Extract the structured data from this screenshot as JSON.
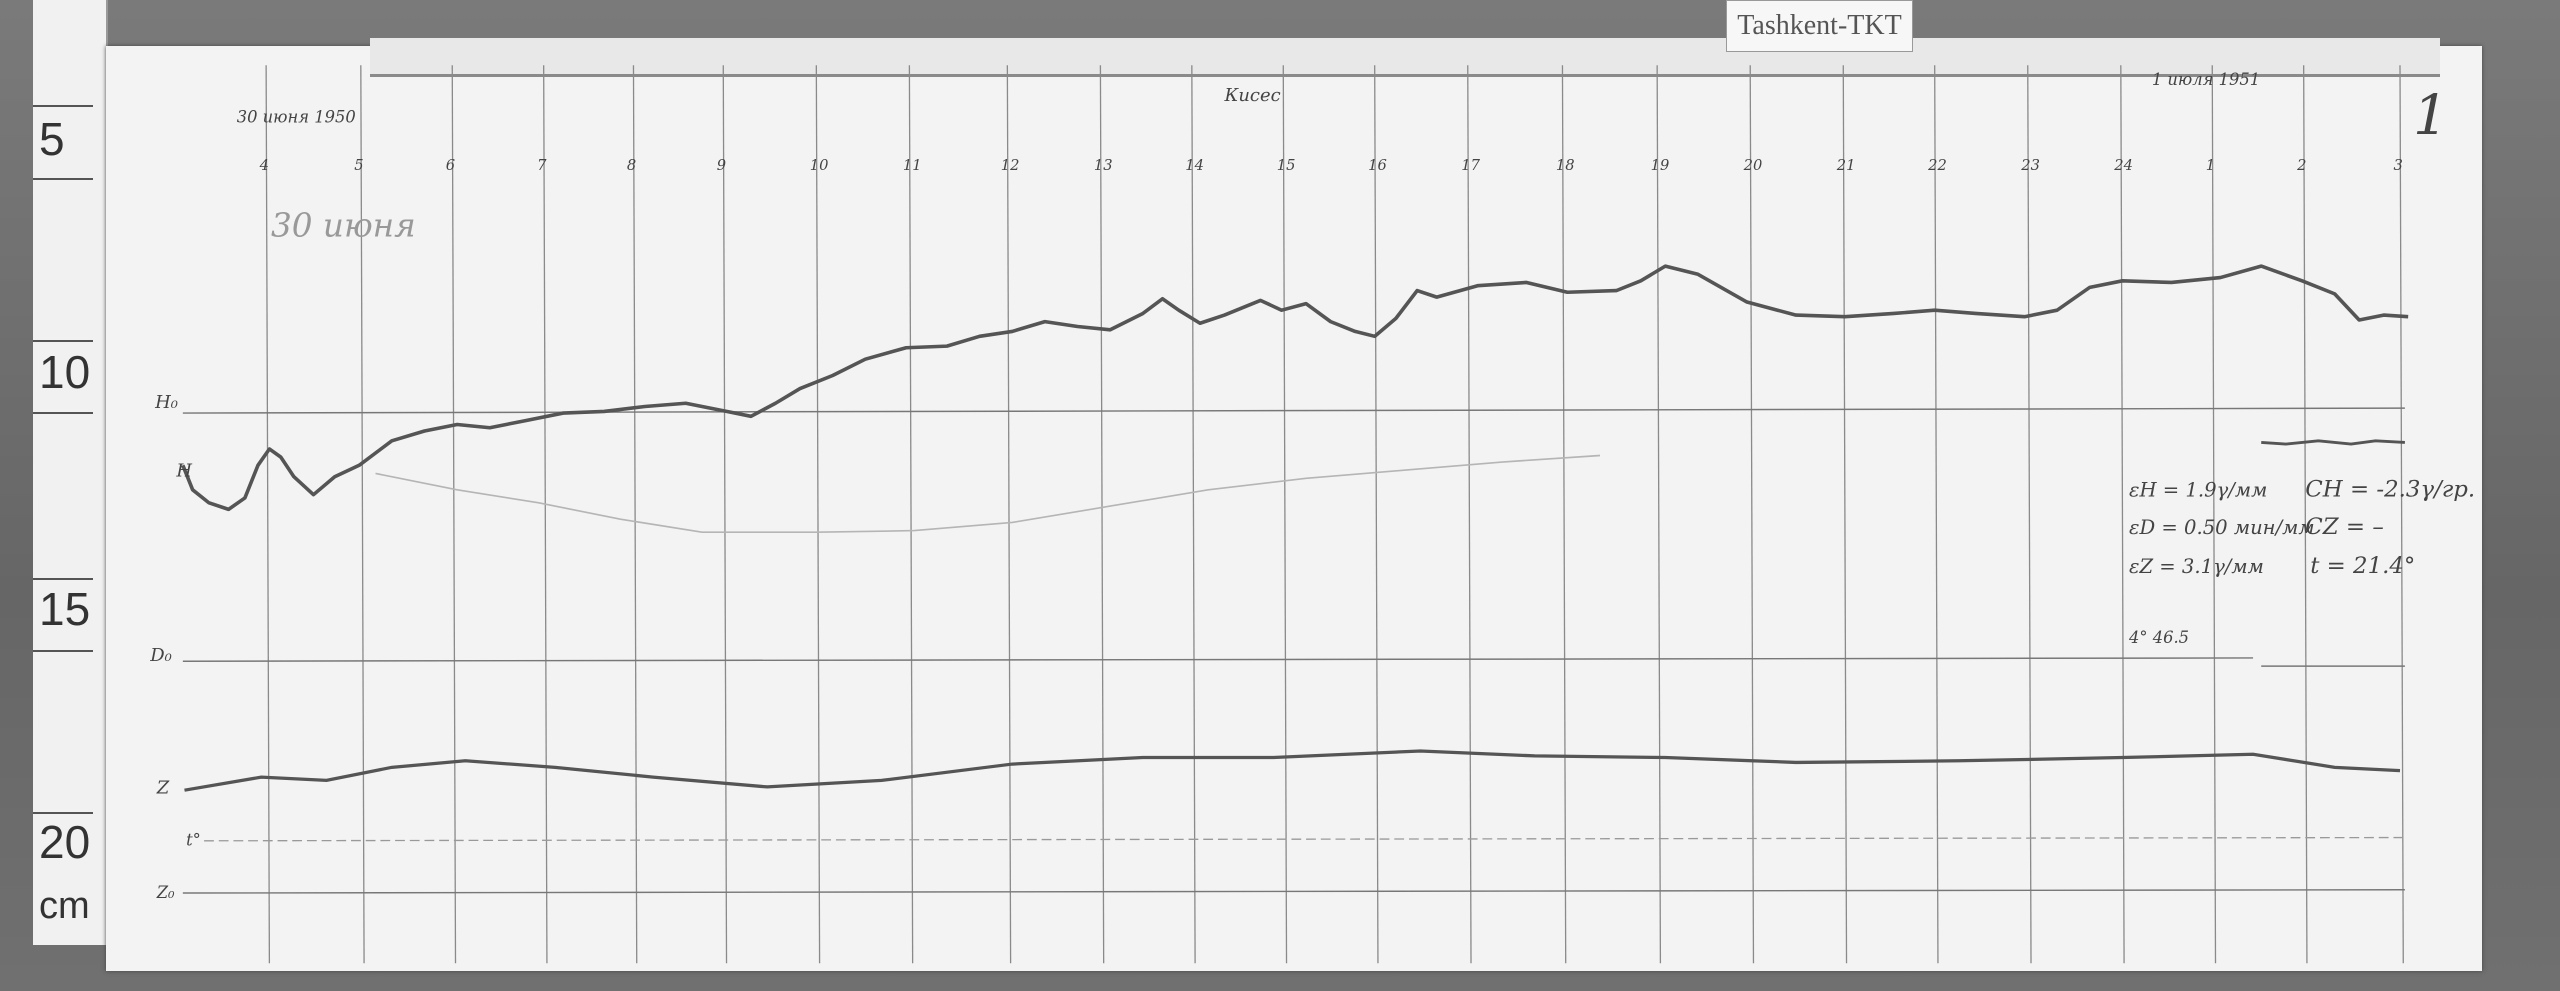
{
  "station_tag": "Tashkent-TKT",
  "sheet_number": "1",
  "start_date": "30 июня 1950",
  "end_date": "1 июля 1951",
  "pencil_note": "30 июня",
  "signature": "Кисес",
  "ruler": {
    "ticks": [
      "5",
      "10",
      "15",
      "20"
    ],
    "unit": "cm"
  },
  "hour_labels": [
    "4",
    "5",
    "6",
    "7",
    "8",
    "9",
    "10",
    "11",
    "12",
    "13",
    "14",
    "15",
    "16",
    "17",
    "18",
    "19",
    "20",
    "21",
    "22",
    "23",
    "24",
    "1",
    "2",
    "3"
  ],
  "trace_labels": {
    "h0": "H₀",
    "h": "H",
    "d0": "D₀",
    "z": "Z",
    "t": "t°",
    "z0": "Z₀"
  },
  "constants": {
    "eps_h": "εH = 1.9γ/мм",
    "eps_d": "εD = 0.50 мин/мм",
    "eps_z": "εZ = 3.1γ/мм",
    "c_h": "CH = -2.3γ/гр.",
    "c_z": "CZ = –",
    "t": "t = 21.4°",
    "d_base": "4° 46.5"
  },
  "colors": {
    "paper": "#f3f3f3",
    "trace": "#555555",
    "board": "#6e6e6e"
  }
}
